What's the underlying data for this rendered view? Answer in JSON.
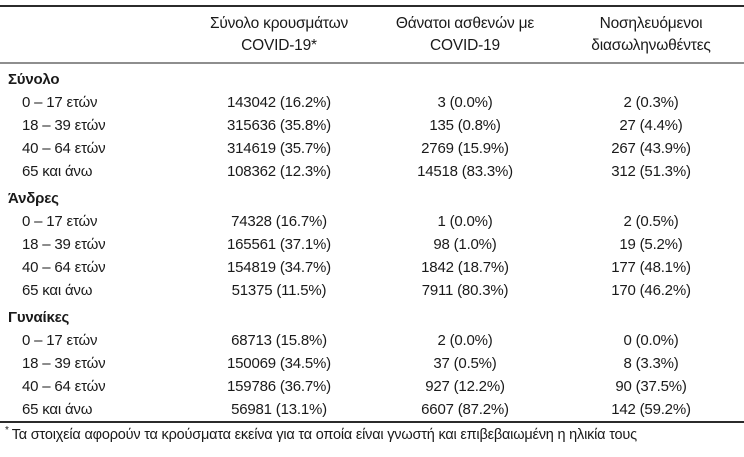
{
  "colors": {
    "text": "#1a1a1a",
    "rule_dark": "#2b2b2b",
    "rule_gray": "#8e8e8e",
    "background": "#ffffff"
  },
  "header": {
    "cases": {
      "line1": "Σύνολο κρουσμάτων",
      "line2": "COVID-19*"
    },
    "deaths": {
      "line1": "Θάνατοι ασθενών με",
      "line2": "COVID-19"
    },
    "intubated": {
      "line1": "Νοσηλευόμενοι",
      "line2": "διασωληνωθέντες"
    }
  },
  "sections": [
    {
      "label": "Σύνολο",
      "rows": [
        {
          "label": "0 – 17 ετών",
          "cases": "143042 (16.2%)",
          "deaths": "3 (0.0%)",
          "intubated": "2 (0.3%)"
        },
        {
          "label": "18 – 39 ετών",
          "cases": "315636 (35.8%)",
          "deaths": "135 (0.8%)",
          "intubated": "27 (4.4%)"
        },
        {
          "label": "40 – 64 ετών",
          "cases": "314619 (35.7%)",
          "deaths": "2769 (15.9%)",
          "intubated": "267 (43.9%)"
        },
        {
          "label": "65 και άνω",
          "cases": "108362 (12.3%)",
          "deaths": "14518 (83.3%)",
          "intubated": "312 (51.3%)"
        }
      ]
    },
    {
      "label": "Άνδρες",
      "rows": [
        {
          "label": "0 – 17 ετών",
          "cases": "74328 (16.7%)",
          "deaths": "1 (0.0%)",
          "intubated": "2 (0.5%)"
        },
        {
          "label": "18 – 39 ετών",
          "cases": "165561 (37.1%)",
          "deaths": "98 (1.0%)",
          "intubated": "19 (5.2%)"
        },
        {
          "label": "40 – 64 ετών",
          "cases": "154819 (34.7%)",
          "deaths": "1842 (18.7%)",
          "intubated": "177 (48.1%)"
        },
        {
          "label": "65 και άνω",
          "cases": "51375 (11.5%)",
          "deaths": "7911 (80.3%)",
          "intubated": "170 (46.2%)"
        }
      ]
    },
    {
      "label": "Γυναίκες",
      "rows": [
        {
          "label": "0 – 17 ετών",
          "cases": "68713 (15.8%)",
          "deaths": "2 (0.0%)",
          "intubated": "0 (0.0%)"
        },
        {
          "label": "18 – 39 ετών",
          "cases": "150069 (34.5%)",
          "deaths": "37 (0.5%)",
          "intubated": "8 (3.3%)"
        },
        {
          "label": "40 – 64 ετών",
          "cases": "159786 (36.7%)",
          "deaths": "927 (12.2%)",
          "intubated": "90 (37.5%)"
        },
        {
          "label": "65 και άνω",
          "cases": "56981 (13.1%)",
          "deaths": "6607 (87.2%)",
          "intubated": "142 (59.2%)"
        }
      ]
    }
  ],
  "footnote": {
    "marker": "*",
    "text": "Τα στοιχεία αφορούν τα κρούσματα εκείνα για τα οποία είναι γνωστή και επιβεβαιωμένη η ηλικία τους"
  }
}
